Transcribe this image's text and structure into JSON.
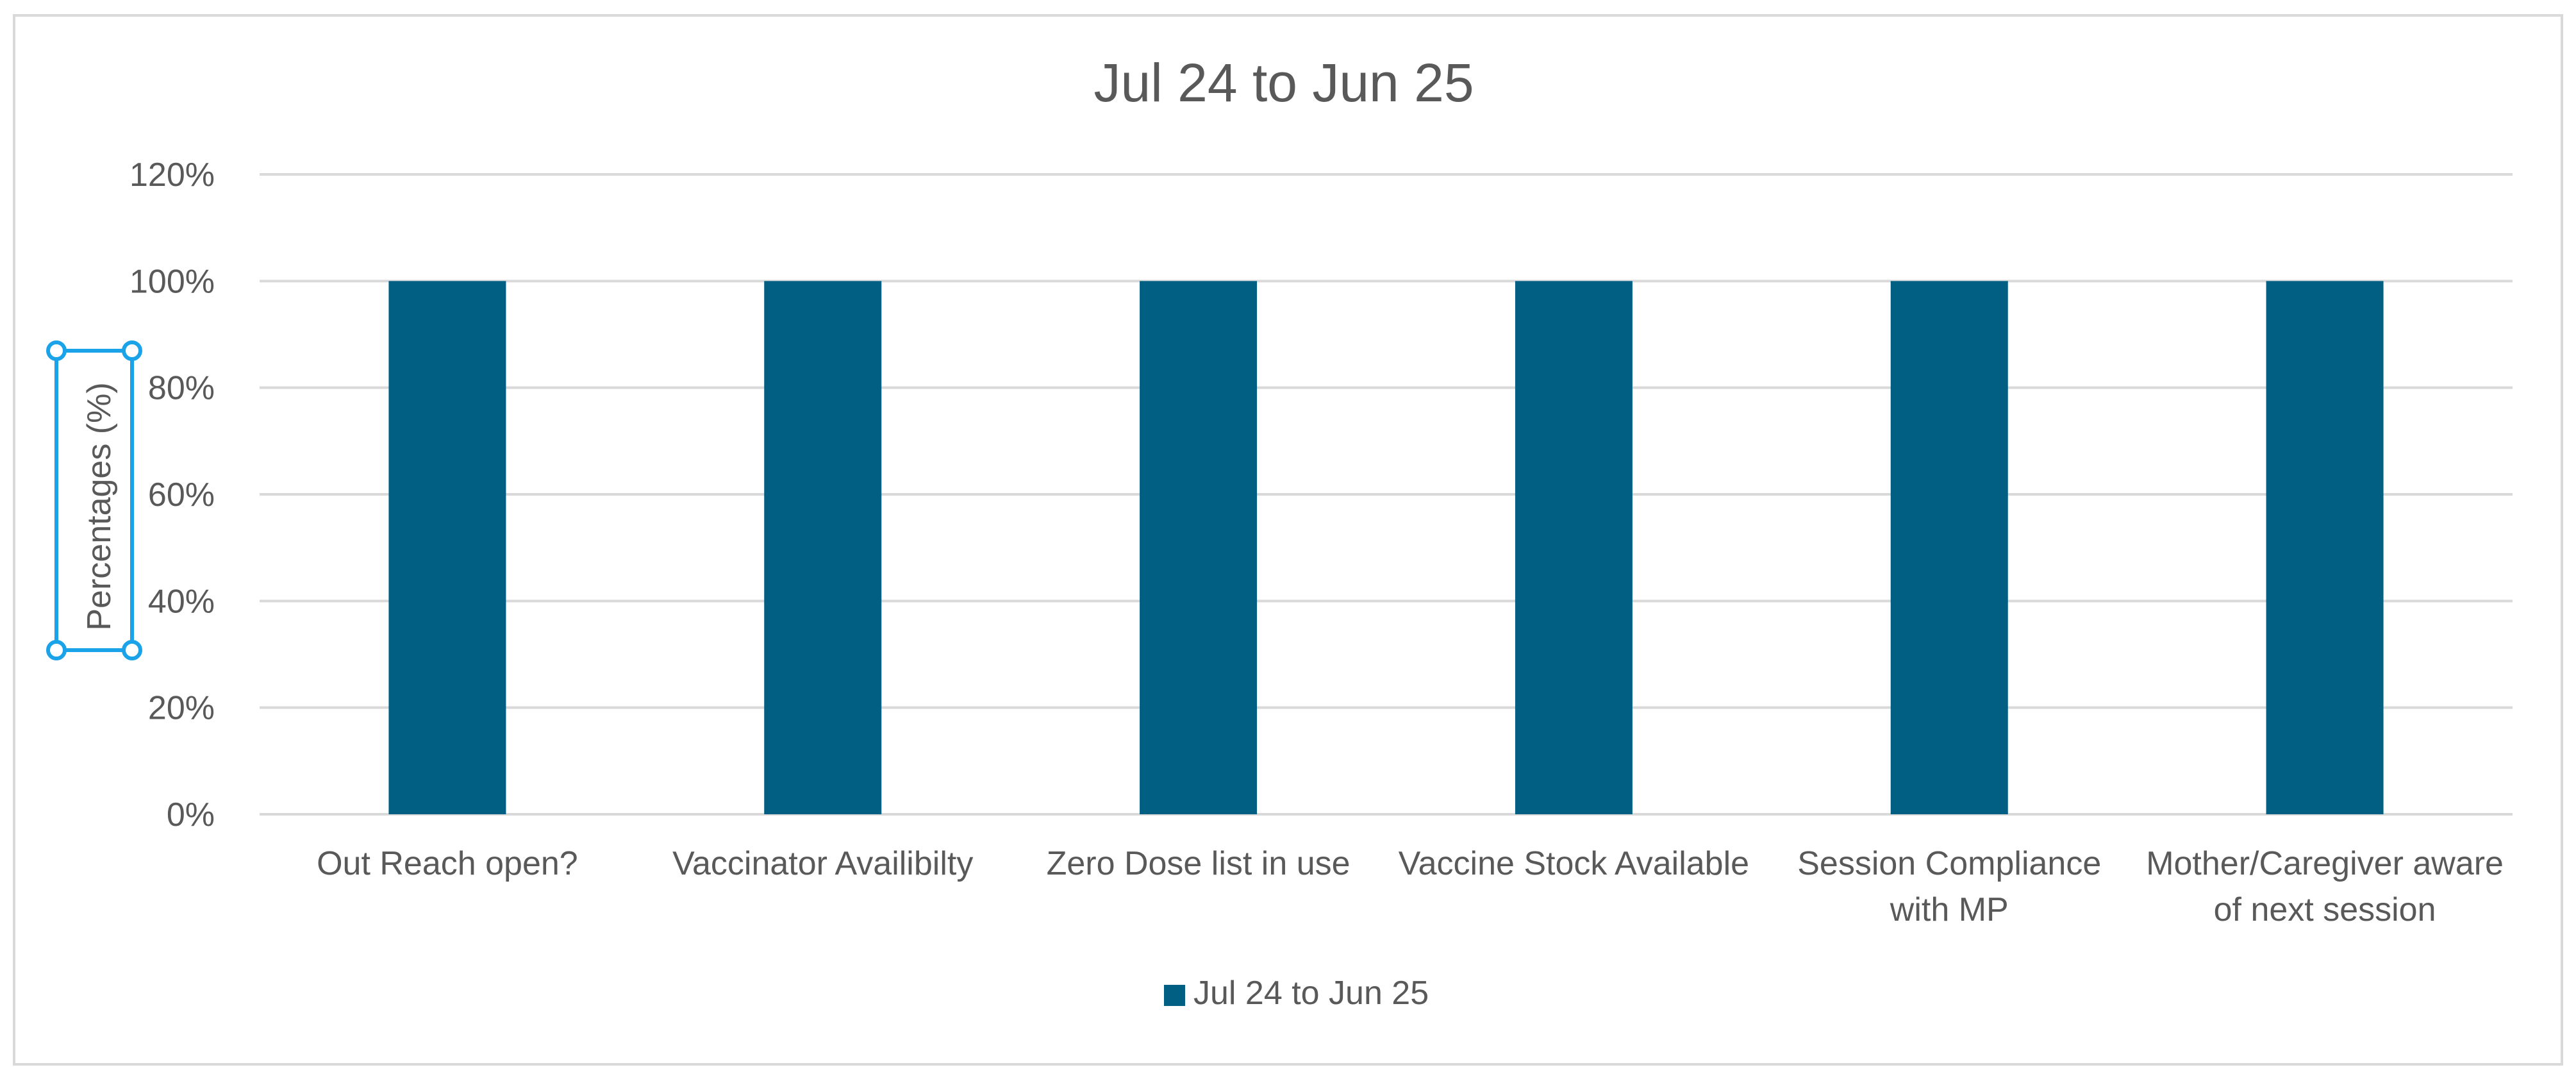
{
  "chart_data": {
    "type": "bar",
    "title": "Jul 24 to Jun 25",
    "xlabel": "",
    "ylabel": "Percentages (%)",
    "categories": [
      [
        "Out Reach open?"
      ],
      [
        "Vaccinator Availibilty"
      ],
      [
        "Zero Dose list in use"
      ],
      [
        "Vaccine Stock Available"
      ],
      [
        "Session Compliance",
        "with MP"
      ],
      [
        "Mother/Caregiver aware",
        "of next session"
      ]
    ],
    "series": [
      {
        "name": "Jul 24 to Jun 25",
        "values": [
          100,
          100,
          100,
          100,
          100,
          100
        ]
      }
    ],
    "ylim": [
      0,
      120
    ],
    "yticks": [
      0,
      20,
      40,
      60,
      80,
      100,
      120
    ],
    "ytick_labels": [
      "0%",
      "20%",
      "40%",
      "60%",
      "80%",
      "100%",
      "120%"
    ],
    "grid": true,
    "legend_position": "bottom",
    "colors": {
      "bar": "#005f83"
    }
  }
}
